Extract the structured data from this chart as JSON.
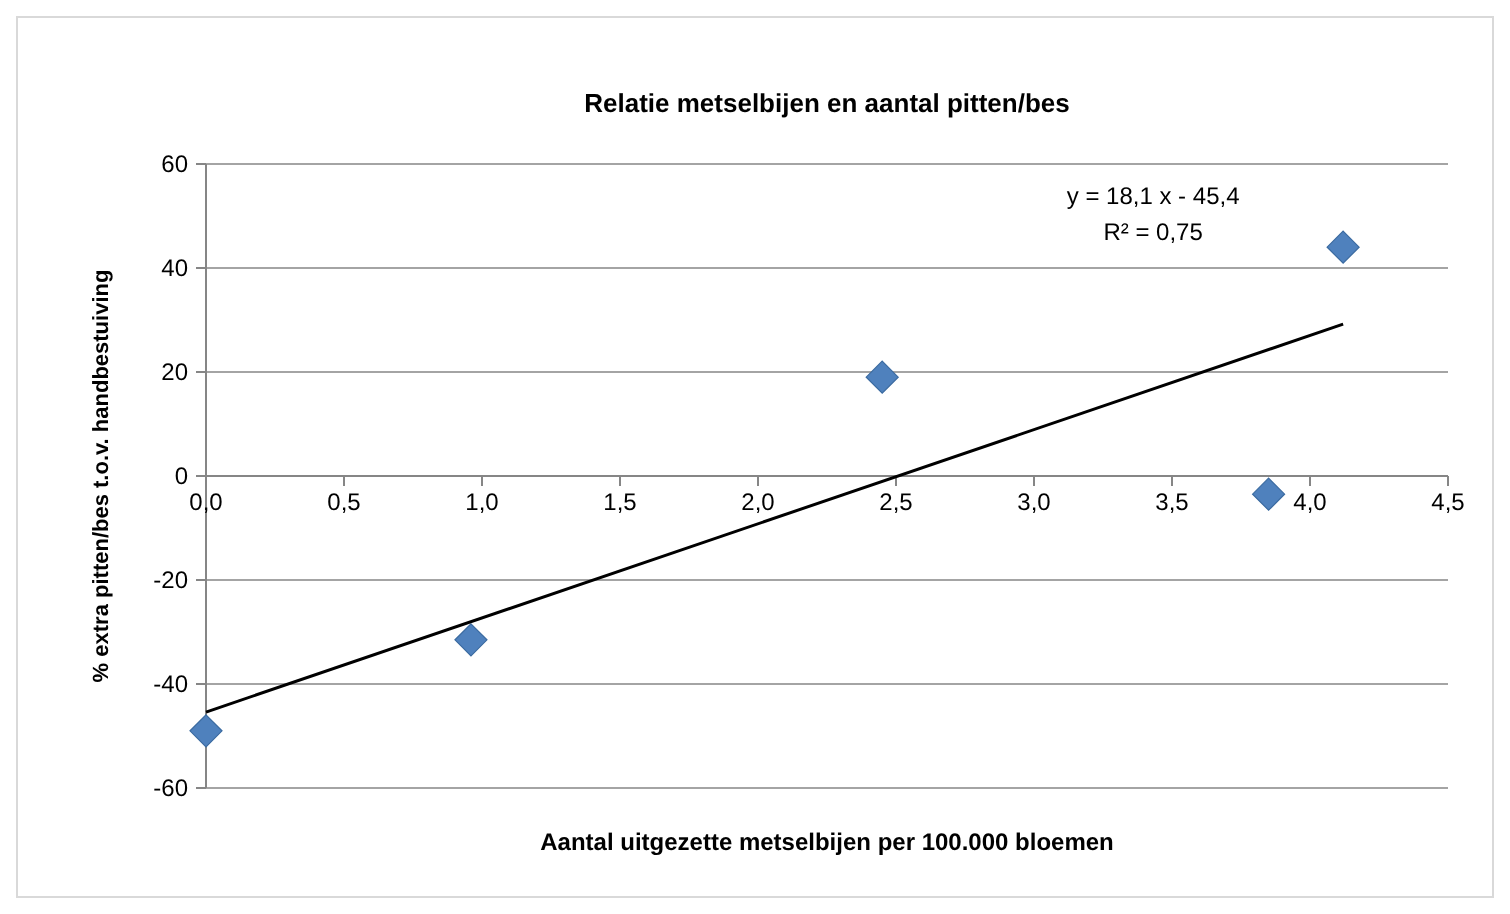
{
  "chart_data": {
    "type": "scatter",
    "title": "Relatie metselbijen en aantal pitten/bes",
    "xlabel": "Aantal uitgezette metselbijen per 100.000 bloemen",
    "ylabel": "% extra pitten/bes t.o.v. handbestuiving",
    "xlim": [
      0,
      4.5
    ],
    "xticks": [
      {
        "value": 0,
        "label": "0,0"
      },
      {
        "value": 0.5,
        "label": "0,5"
      },
      {
        "value": 1,
        "label": "1,0"
      },
      {
        "value": 1.5,
        "label": "1,5"
      },
      {
        "value": 2,
        "label": "2,0"
      },
      {
        "value": 2.5,
        "label": "2,5"
      },
      {
        "value": 3,
        "label": "3,0"
      },
      {
        "value": 3.5,
        "label": "3,5"
      },
      {
        "value": 4,
        "label": "4,0"
      },
      {
        "value": 4.5,
        "label": "4,5"
      }
    ],
    "ylim": [
      -60,
      60
    ],
    "yticks": [
      -60,
      -40,
      -20,
      0,
      20,
      40,
      60
    ],
    "grid": "y",
    "series": [
      {
        "color": "#4f81bd",
        "marker": "diamond",
        "x": [
          0,
          0.96,
          2.45,
          3.85,
          4.12
        ],
        "values": [
          -49,
          -31.5,
          19,
          -3.5,
          44
        ]
      },
      {
        "type": "line",
        "color": "#000000",
        "marker": "none",
        "line_style": "solid",
        "x": [
          0,
          4.12
        ],
        "values": [
          -45.4,
          29.2
        ]
      }
    ],
    "annotations": [
      "y = 18,1 x - 45,4",
      "R² = 0,75"
    ]
  }
}
